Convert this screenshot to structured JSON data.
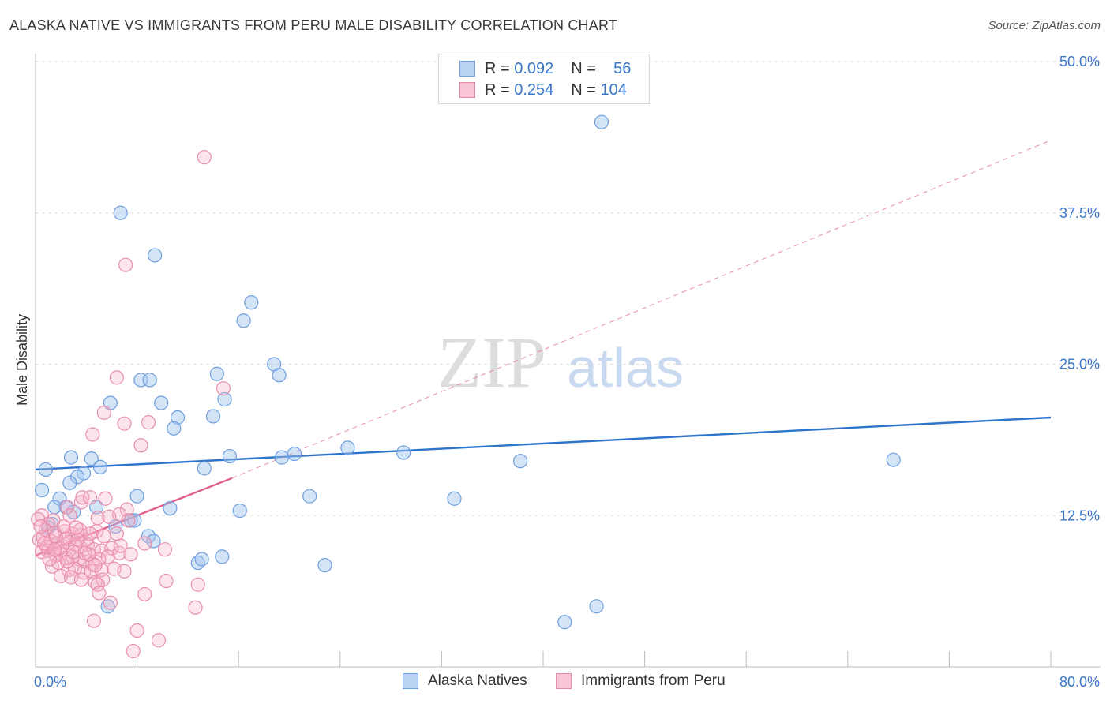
{
  "title": "ALASKA NATIVE VS IMMIGRANTS FROM PERU MALE DISABILITY CORRELATION CHART",
  "source": "Source: ZipAtlas.com",
  "watermark": {
    "zip": "ZIP",
    "atlas": "atlas"
  },
  "legend": {
    "r_label": "R =",
    "n_label": "N =",
    "series": [
      {
        "r": "0.092",
        "n": "56",
        "color": "#6f9fe0",
        "fill": "#b9d2f3"
      },
      {
        "r": "0.254",
        "n": "104",
        "color": "#e889a8",
        "fill": "#f8c6d5"
      }
    ]
  },
  "bottom_legend": [
    "Alaska Natives",
    "Immigrants from Peru"
  ],
  "chart_data": {
    "type": "scatter",
    "title": "ALASKA NATIVE VS IMMIGRANTS FROM PERU MALE DISABILITY CORRELATION CHART",
    "xlabel": "",
    "ylabel": "Male Disability",
    "xlim": [
      0,
      80
    ],
    "ylim": [
      0,
      50
    ],
    "x_tick_labels": [
      "0.0%",
      "80.0%"
    ],
    "y_ticks": [
      12.5,
      25.0,
      37.5,
      50.0
    ],
    "y_tick_labels": [
      "12.5%",
      "25.0%",
      "37.5%",
      "50.0%"
    ],
    "series": [
      {
        "name": "Alaska Natives",
        "color": "#3a7bd5",
        "points": [
          [
            44.6,
            45.0
          ],
          [
            6.7,
            37.5
          ],
          [
            9.4,
            34.0
          ],
          [
            17.0,
            30.1
          ],
          [
            16.4,
            28.6
          ],
          [
            18.8,
            25.0
          ],
          [
            19.2,
            24.1
          ],
          [
            14.3,
            24.2
          ],
          [
            8.3,
            23.7
          ],
          [
            9.0,
            23.7
          ],
          [
            14.9,
            22.1
          ],
          [
            5.9,
            21.8
          ],
          [
            9.9,
            21.8
          ],
          [
            11.2,
            20.6
          ],
          [
            10.9,
            19.7
          ],
          [
            14.0,
            20.7
          ],
          [
            4.4,
            17.2
          ],
          [
            2.8,
            17.3
          ],
          [
            15.3,
            17.4
          ],
          [
            19.4,
            17.3
          ],
          [
            20.4,
            17.6
          ],
          [
            24.6,
            18.1
          ],
          [
            29.0,
            17.7
          ],
          [
            38.2,
            17.0
          ],
          [
            67.6,
            17.1
          ],
          [
            5.1,
            16.5
          ],
          [
            13.3,
            16.4
          ],
          [
            0.8,
            16.3
          ],
          [
            3.8,
            16.0
          ],
          [
            3.3,
            15.7
          ],
          [
            2.7,
            15.2
          ],
          [
            0.5,
            14.6
          ],
          [
            1.9,
            13.9
          ],
          [
            8.0,
            14.1
          ],
          [
            21.6,
            14.1
          ],
          [
            33.0,
            13.9
          ],
          [
            1.5,
            13.2
          ],
          [
            2.4,
            13.2
          ],
          [
            3.0,
            12.8
          ],
          [
            4.8,
            13.2
          ],
          [
            10.6,
            13.1
          ],
          [
            16.1,
            12.9
          ],
          [
            1.3,
            11.8
          ],
          [
            7.5,
            12.1
          ],
          [
            7.8,
            12.1
          ],
          [
            6.3,
            11.6
          ],
          [
            8.9,
            10.8
          ],
          [
            12.8,
            8.6
          ],
          [
            13.1,
            8.9
          ],
          [
            14.7,
            9.1
          ],
          [
            22.8,
            8.4
          ],
          [
            5.7,
            5.0
          ],
          [
            44.2,
            5.0
          ],
          [
            41.7,
            3.7
          ],
          [
            9.3,
            10.4
          ],
          [
            1.0,
            11.5
          ]
        ]
      },
      {
        "name": "Immigrants from Peru",
        "color": "#e0608a",
        "points": [
          [
            13.3,
            42.1
          ],
          [
            7.1,
            33.2
          ],
          [
            6.4,
            23.9
          ],
          [
            14.8,
            23.0
          ],
          [
            5.4,
            21.0
          ],
          [
            7.0,
            20.1
          ],
          [
            8.9,
            20.2
          ],
          [
            4.5,
            19.2
          ],
          [
            8.3,
            18.3
          ],
          [
            5.5,
            13.9
          ],
          [
            3.6,
            13.6
          ],
          [
            3.7,
            14.0
          ],
          [
            4.3,
            14.0
          ],
          [
            2.5,
            13.2
          ],
          [
            7.2,
            13.0
          ],
          [
            0.5,
            12.5
          ],
          [
            1.0,
            11.8
          ],
          [
            0.8,
            11.3
          ],
          [
            1.5,
            11.1
          ],
          [
            2.3,
            11.2
          ],
          [
            2.9,
            11.0
          ],
          [
            3.6,
            10.9
          ],
          [
            4.0,
            10.5
          ],
          [
            4.8,
            11.2
          ],
          [
            5.4,
            10.8
          ],
          [
            6.4,
            11.0
          ],
          [
            0.3,
            10.5
          ],
          [
            0.6,
            10.7
          ],
          [
            1.2,
            10.4
          ],
          [
            1.7,
            10.2
          ],
          [
            2.1,
            10.0
          ],
          [
            2.6,
            10.3
          ],
          [
            3.1,
            10.1
          ],
          [
            3.5,
            9.9
          ],
          [
            4.1,
            10.1
          ],
          [
            4.6,
            9.7
          ],
          [
            5.2,
            9.6
          ],
          [
            6.0,
            9.8
          ],
          [
            7.5,
            9.3
          ],
          [
            8.6,
            10.2
          ],
          [
            10.2,
            9.7
          ],
          [
            0.5,
            9.5
          ],
          [
            1.0,
            9.6
          ],
          [
            1.6,
            9.2
          ],
          [
            2.0,
            9.3
          ],
          [
            2.4,
            9.0
          ],
          [
            2.9,
            9.1
          ],
          [
            3.4,
            8.9
          ],
          [
            3.9,
            8.7
          ],
          [
            4.5,
            8.5
          ],
          [
            5.0,
            8.9
          ],
          [
            1.3,
            8.3
          ],
          [
            1.8,
            8.6
          ],
          [
            2.6,
            8.0
          ],
          [
            3.1,
            8.1
          ],
          [
            3.8,
            7.8
          ],
          [
            4.4,
            7.9
          ],
          [
            5.2,
            8.0
          ],
          [
            6.2,
            8.1
          ],
          [
            7.0,
            7.9
          ],
          [
            2.0,
            7.5
          ],
          [
            2.8,
            7.4
          ],
          [
            3.6,
            7.2
          ],
          [
            4.7,
            7.0
          ],
          [
            5.3,
            7.2
          ],
          [
            4.9,
            6.8
          ],
          [
            5.0,
            6.1
          ],
          [
            10.3,
            7.1
          ],
          [
            12.8,
            6.8
          ],
          [
            8.6,
            6.0
          ],
          [
            5.9,
            5.3
          ],
          [
            12.6,
            4.9
          ],
          [
            4.6,
            3.8
          ],
          [
            8.0,
            3.0
          ],
          [
            9.7,
            2.2
          ],
          [
            7.7,
            1.3
          ],
          [
            7.3,
            12.1
          ],
          [
            6.6,
            12.6
          ],
          [
            0.2,
            12.2
          ],
          [
            0.4,
            11.6
          ],
          [
            1.4,
            12.1
          ],
          [
            1.6,
            10.8
          ],
          [
            2.7,
            12.5
          ],
          [
            3.5,
            11.3
          ],
          [
            4.9,
            12.3
          ],
          [
            5.8,
            12.4
          ],
          [
            0.9,
            9.9
          ],
          [
            1.9,
            9.8
          ],
          [
            2.2,
            11.6
          ],
          [
            3.3,
            10.5
          ],
          [
            4.2,
            9.3
          ],
          [
            5.7,
            9.1
          ],
          [
            6.6,
            9.4
          ],
          [
            1.1,
            8.9
          ],
          [
            2.5,
            8.7
          ],
          [
            3.0,
            9.5
          ],
          [
            3.9,
            9.4
          ],
          [
            4.7,
            8.4
          ],
          [
            6.7,
            10.0
          ],
          [
            0.7,
            10.2
          ],
          [
            1.5,
            9.7
          ],
          [
            2.4,
            10.6
          ],
          [
            3.2,
            11.5
          ],
          [
            4.3,
            11.0
          ]
        ]
      }
    ],
    "trendlines": [
      {
        "series": "Alaska Natives",
        "x": [
          0,
          80
        ],
        "y": [
          16.3,
          20.6
        ],
        "style": "solid"
      },
      {
        "series": "Immigrants from Peru",
        "x": [
          0,
          15.5
        ],
        "y": [
          9.2,
          15.6
        ],
        "style": "solid"
      },
      {
        "series": "Immigrants from Peru",
        "x": [
          15.5,
          80
        ],
        "y": [
          15.6,
          43.5
        ],
        "style": "dashed"
      }
    ]
  }
}
